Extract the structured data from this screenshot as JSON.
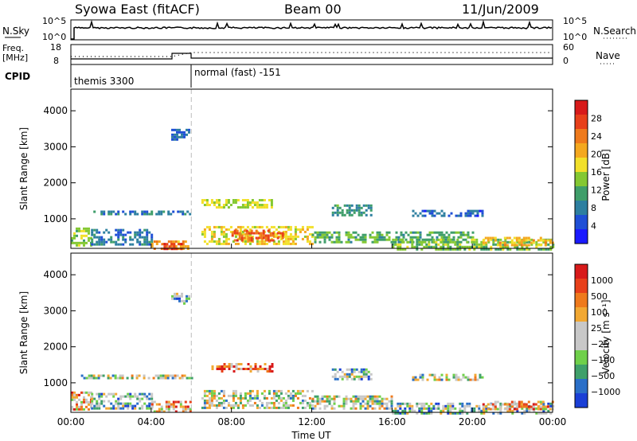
{
  "header": {
    "title": "Syowa East (fitACF)",
    "beam": "Beam 00",
    "date": "11/Jun/2009"
  },
  "status_panels": {
    "nsky_label": "N.Sky",
    "nsky_ticks": [
      "10^5",
      "10^0"
    ],
    "nsearch_label": "N.Search",
    "nsearch_ticks": [
      "10^5",
      "10^0"
    ],
    "freq_label_1": "Freq.",
    "freq_label_2": "[MHz]",
    "freq_ticks": [
      "18",
      "8"
    ],
    "nave_label": "Nave",
    "nave_ticks": [
      "60",
      "0"
    ],
    "cpid_label": "CPID",
    "cpid_segments": [
      {
        "name": "themis 3300",
        "start_hour": 0,
        "end_hour": 6
      },
      {
        "name": "normal (fast) -151",
        "start_hour": 6,
        "end_hour": 24
      }
    ]
  },
  "chart_data": [
    {
      "type": "heatmap",
      "panel": "power",
      "ylabel": "Slant Range [km]",
      "ylim": [
        180,
        4600
      ],
      "yticks": [
        "1000",
        "2000",
        "3000",
        "4000"
      ],
      "xlim_hours": [
        0,
        24
      ],
      "colorbar": {
        "label": "Power [dB]",
        "ticks": [
          "4",
          "8",
          "12",
          "16",
          "20",
          "24",
          "28"
        ],
        "colors": [
          "#1a1aff",
          "#1f4fd6",
          "#2d7fa0",
          "#3f9e6a",
          "#84c832",
          "#f2e02a",
          "#f4a81f",
          "#ef7a1c",
          "#e8401a",
          "#d81a1a"
        ]
      },
      "regions": [
        {
          "t0": 0.0,
          "t1": 1.0,
          "r0": 250,
          "r1": 760,
          "level": 14
        },
        {
          "t0": 1.0,
          "t1": 4.0,
          "r0": 300,
          "r1": 720,
          "level": 8
        },
        {
          "t0": 4.0,
          "t1": 6.0,
          "r0": 180,
          "r1": 400,
          "level": 22
        },
        {
          "t0": 4.5,
          "t1": 5.5,
          "r0": 180,
          "r1": 330,
          "level": 28
        },
        {
          "t0": 6.5,
          "t1": 12.0,
          "r0": 300,
          "r1": 800,
          "level": 18
        },
        {
          "t0": 8.0,
          "t1": 10.5,
          "r0": 400,
          "r1": 700,
          "level": 26
        },
        {
          "t0": 6.5,
          "t1": 10.0,
          "r0": 1300,
          "r1": 1550,
          "level": 16
        },
        {
          "t0": 1.0,
          "t1": 6.0,
          "r0": 1120,
          "r1": 1230,
          "level": 8
        },
        {
          "t0": 12.0,
          "t1": 20.0,
          "r0": 350,
          "r1": 650,
          "level": 12
        },
        {
          "t0": 16.0,
          "t1": 24.0,
          "r0": 180,
          "r1": 450,
          "level": 14
        },
        {
          "t0": 13.0,
          "t1": 15.0,
          "r0": 1100,
          "r1": 1400,
          "level": 10
        },
        {
          "t0": 17.0,
          "t1": 20.5,
          "r0": 1100,
          "r1": 1250,
          "level": 6
        },
        {
          "t0": 5.0,
          "t1": 5.9,
          "r0": 3200,
          "r1": 3500,
          "level": 6
        },
        {
          "t0": 20.5,
          "t1": 24.0,
          "r0": 250,
          "r1": 500,
          "level": 20
        }
      ]
    },
    {
      "type": "heatmap",
      "panel": "velocity",
      "ylabel": "Slant Range [km]",
      "ylim": [
        180,
        4600
      ],
      "yticks": [
        "1000",
        "2000",
        "3000",
        "4000"
      ],
      "xlim_hours": [
        0,
        24
      ],
      "xticks": [
        "00:00",
        "04:00",
        "08:00",
        "12:00",
        "16:00",
        "20:00",
        "00:00"
      ],
      "xlabel": "Time UT",
      "colorbar": {
        "label": "Velocity [m s⁻¹]",
        "ticks": [
          "1000",
          "500",
          "100",
          "25",
          "−25",
          "−100",
          "−500",
          "−1000"
        ],
        "colors": [
          "#1a3fd6",
          "#2a6fc8",
          "#3fa06a",
          "#6fd04a",
          "#c8c8c8",
          "#c8c8c8",
          "#f2a832",
          "#ef7a1c",
          "#e8401a",
          "#d81a1a"
        ]
      },
      "regions": [
        {
          "t0": 0.0,
          "t1": 1.0,
          "r0": 250,
          "r1": 760,
          "level": 6
        },
        {
          "t0": 1.0,
          "t1": 4.0,
          "r0": 300,
          "r1": 720,
          "level": 3
        },
        {
          "t0": 4.0,
          "t1": 6.0,
          "r0": 180,
          "r1": 500,
          "level": 6
        },
        {
          "t0": 6.5,
          "t1": 12.0,
          "r0": 300,
          "r1": 800,
          "level": 4
        },
        {
          "t0": 7.0,
          "t1": 10.0,
          "r0": 1300,
          "r1": 1550,
          "level": 7
        },
        {
          "t0": 0.5,
          "t1": 6.0,
          "r0": 1120,
          "r1": 1230,
          "level": 4
        },
        {
          "t0": 12.0,
          "t1": 16.0,
          "r0": 300,
          "r1": 650,
          "level": 4
        },
        {
          "t0": 16.0,
          "t1": 24.0,
          "r0": 180,
          "r1": 450,
          "level": 3
        },
        {
          "t0": 13.0,
          "t1": 15.0,
          "r0": 1100,
          "r1": 1400,
          "level": 3
        },
        {
          "t0": 17.0,
          "t1": 20.5,
          "r0": 1100,
          "r1": 1250,
          "level": 4
        },
        {
          "t0": 5.0,
          "t1": 5.9,
          "r0": 3200,
          "r1": 3500,
          "level": 3
        },
        {
          "t0": 20.5,
          "t1": 24.0,
          "r0": 250,
          "r1": 500,
          "level": 6
        }
      ]
    }
  ]
}
